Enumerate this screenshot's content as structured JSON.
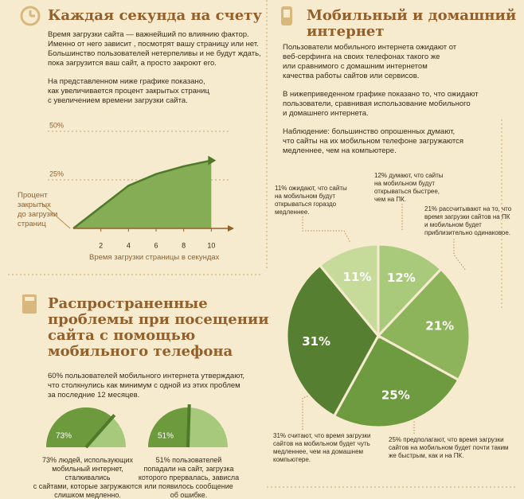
{
  "left": {
    "title1": "Каждая секунда на счету",
    "p1": "Время загрузки сайта — важнейший по влиянию фактор.\nИменно от него зависит , посмотрят вашу страницу или нет.\nБольшинство пользователей нетерпеливы и не будут ждать,\nпока загрузится ваш сайт, а просто закроют его.",
    "p2": "На представленном ниже графике показано,\nкак увеличивается процент закрытых страниц\nс увеличением времени загрузки сайта.",
    "title2": "Распространенные\nпроблемы при посещении\nсайта с помощью\nмобильного телефона",
    "p3": "60% пользователей мобильного интернета утверждают,\nчто столкнулись как минимум с одной из этих проблем\nза последние 12 месяцев."
  },
  "right": {
    "title": "Мобильный и домашний\nинтернет",
    "p1": "Пользователи мобильного интернета ожидают от\nвеб-серфинга на своих телефонах такого же\nили сравнимого с домашним интернетом\nкачества работы сайтов или сервисов.",
    "p2": "В нижеприведенном графике показано то, что ожидают\nпользователи, сравнивая использование мобильного\nи домашнего интернета.",
    "p3": "Наблюдение: большинство опрошенных думают,\nчто сайты на их мобильном телефоне загружаются\nмедленнее, чем на компьютере."
  },
  "chart_data": [
    {
      "type": "area",
      "xlabel": "Время загрузки страницы в секундах",
      "ylabel": "Процент\nзакрытых\nдо загрузки\nстраниц",
      "x": [
        0,
        4,
        6,
        8,
        10
      ],
      "values": [
        0,
        22,
        28,
        32,
        35
      ],
      "color": "#84ad55",
      "line_color": "#4e7a2a",
      "xlim": [
        0,
        10.5
      ],
      "ylim": [
        0,
        52
      ],
      "xticks": [
        2,
        4,
        6,
        8,
        10
      ],
      "yticks": [
        {
          "value": 25,
          "label": "25%"
        },
        {
          "value": 50,
          "label": "50%"
        }
      ]
    },
    {
      "type": "gauge",
      "values": [
        73
      ],
      "value_labels": [
        "73%"
      ],
      "ylim": [
        0,
        100
      ],
      "color": "#6e9a3e",
      "caption": "73% людей, использующих\nмобильный интернет, сталкивались\nс сайтами, которые загружаются\nслишком медленно."
    },
    {
      "type": "gauge",
      "values": [
        51
      ],
      "value_labels": [
        "51%"
      ],
      "ylim": [
        0,
        100
      ],
      "color": "#6e9a3e",
      "caption": "51% пользователей\nпопадали на сайт, загрузка\nкоторого прервалась, зависла\nили появилось сообщение\nоб ошибке."
    },
    {
      "type": "pie",
      "values": [
        12,
        21,
        25,
        31,
        11
      ],
      "value_labels": [
        "12%",
        "21%",
        "25%",
        "31%",
        "11%"
      ],
      "colors": [
        "#a9c97b",
        "#8db45a",
        "#6f9b40",
        "#577f31",
        "#c6da99"
      ],
      "annotations": [
        "12% думают, что сайты\nна мобильном будут\nоткрываться быстрее,\nчем на ПК.",
        "21% рассчитывают на то, что\nвремя загрузки сайтов на ПК\nи мобильном будет\nприблизительно одинаковое.",
        "25% предполагают, что время загрузки\nсайтов на мобильном будет почти таким\nже быстрым, как и на ПК.",
        "31% считают, что время загрузки\nсайтов на мобильном будет чуть\nмедленнее, чем на домашнем\nкомпьютере.",
        "11% ожидают, что сайты\nна мобильном будут\nоткрываться гораздо\nмедленнее."
      ]
    }
  ]
}
